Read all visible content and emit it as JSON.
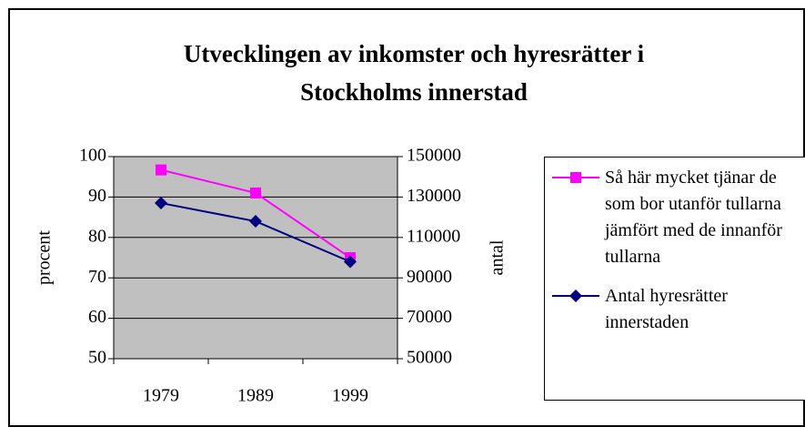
{
  "chart_data": {
    "type": "line",
    "title": "Utvecklingen av inkomster och hyresrätter i Stockholms innerstad",
    "categories": [
      "1979",
      "1989",
      "1999"
    ],
    "ylabel": "procent",
    "y2label": "antal",
    "ylim": [
      50,
      100
    ],
    "yticks": [
      50,
      60,
      70,
      80,
      90,
      100
    ],
    "y2lim": [
      50000,
      150000
    ],
    "y2ticks": [
      50000,
      70000,
      90000,
      110000,
      130000,
      150000
    ],
    "grid": true,
    "legend": "right",
    "series": [
      {
        "name": "Så här mycket tjänar de som bor utanför tullarna jämfört med de innanför tullarna",
        "color": "#ff00ff",
        "marker": "square",
        "values": [
          96.7,
          91,
          75
        ]
      },
      {
        "name": "Antal hyresrätter innerstaden",
        "color": "#000080",
        "marker": "diamond",
        "axis": "y2",
        "values": [
          127000,
          118000,
          98000
        ]
      }
    ]
  }
}
